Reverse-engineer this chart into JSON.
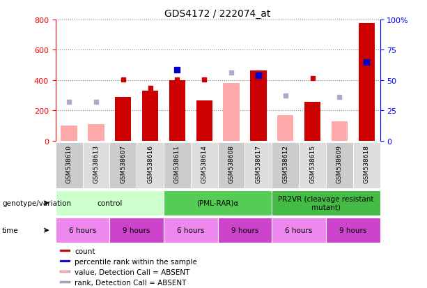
{
  "title": "GDS4172 / 222074_at",
  "samples": [
    "GSM538610",
    "GSM538613",
    "GSM538607",
    "GSM538616",
    "GSM538611",
    "GSM538614",
    "GSM538608",
    "GSM538617",
    "GSM538612",
    "GSM538615",
    "GSM538609",
    "GSM538618"
  ],
  "count_values": [
    null,
    null,
    290,
    330,
    400,
    265,
    null,
    465,
    null,
    255,
    null,
    775
  ],
  "count_absent": [
    100,
    110,
    null,
    null,
    null,
    null,
    380,
    null,
    170,
    null,
    130,
    null
  ],
  "rank_values": [
    null,
    null,
    405,
    350,
    405,
    405,
    null,
    420,
    null,
    415,
    null,
    520
  ],
  "rank_absent": [
    255,
    255,
    null,
    null,
    null,
    null,
    450,
    null,
    300,
    null,
    290,
    null
  ],
  "percentile_values": [
    null,
    null,
    null,
    null,
    470,
    null,
    null,
    430,
    null,
    null,
    null,
    520
  ],
  "color_count": "#cc0000",
  "color_count_absent": "#ffaaaa",
  "color_rank_absent": "#aaaacc",
  "color_percentile": "#0000cc",
  "color_rank_present": "#cc0000",
  "ylim_left": [
    0,
    800
  ],
  "ylim_right": [
    0,
    100
  ],
  "yticks_left": [
    0,
    200,
    400,
    600,
    800
  ],
  "yticks_right": [
    0,
    25,
    50,
    75,
    100
  ],
  "ytick_labels_right": [
    "0",
    "25",
    "50",
    "75",
    "100%"
  ],
  "genotype_groups": [
    {
      "label": "control",
      "start": 0,
      "end": 4,
      "color": "#ccffcc"
    },
    {
      "label": "(PML-RAR)α",
      "start": 4,
      "end": 8,
      "color": "#55cc55"
    },
    {
      "label": "PR2VR (cleavage resistant\nmutant)",
      "start": 8,
      "end": 12,
      "color": "#44bb44"
    }
  ],
  "time_groups": [
    {
      "label": "6 hours",
      "start": 0,
      "end": 2,
      "color": "#ee88ee"
    },
    {
      "label": "9 hours",
      "start": 2,
      "end": 4,
      "color": "#cc44cc"
    },
    {
      "label": "6 hours",
      "start": 4,
      "end": 6,
      "color": "#ee88ee"
    },
    {
      "label": "9 hours",
      "start": 6,
      "end": 8,
      "color": "#cc44cc"
    },
    {
      "label": "6 hours",
      "start": 8,
      "end": 10,
      "color": "#ee88ee"
    },
    {
      "label": "9 hours",
      "start": 10,
      "end": 12,
      "color": "#cc44cc"
    }
  ],
  "genotype_label": "genotype/variation",
  "time_label": "time",
  "legend_items": [
    {
      "label": "count",
      "color": "#cc0000"
    },
    {
      "label": "percentile rank within the sample",
      "color": "#0000cc"
    },
    {
      "label": "value, Detection Call = ABSENT",
      "color": "#ffaaaa"
    },
    {
      "label": "rank, Detection Call = ABSENT",
      "color": "#aaaacc"
    }
  ],
  "xticklabel_bg_colors": [
    "#cccccc",
    "#dddddd",
    "#cccccc",
    "#dddddd",
    "#cccccc",
    "#dddddd",
    "#cccccc",
    "#dddddd",
    "#cccccc",
    "#dddddd",
    "#cccccc",
    "#dddddd"
  ]
}
